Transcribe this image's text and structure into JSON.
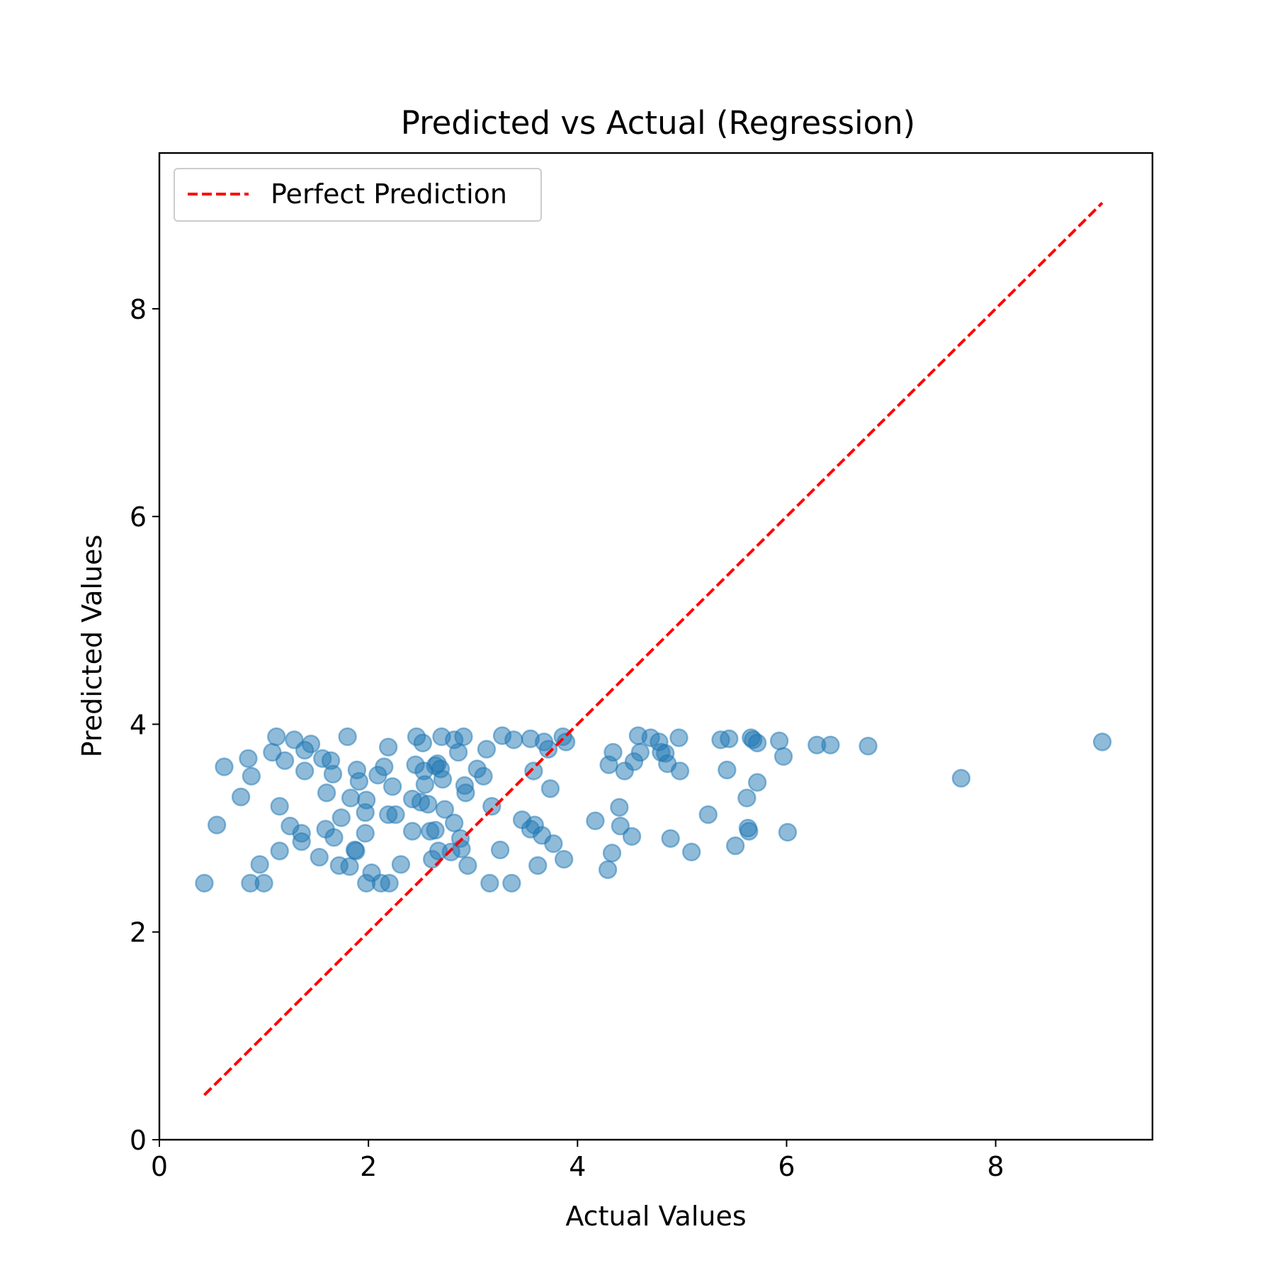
{
  "chart_data": {
    "type": "scatter",
    "title": "Predicted vs Actual (Regression)",
    "xlabel": "Actual Values",
    "ylabel": "Predicted Values",
    "xlim": [
      0,
      9.5
    ],
    "ylim": [
      0,
      9.5
    ],
    "xticks": [
      "0",
      "2",
      "4",
      "6",
      "8"
    ],
    "yticks": [
      "0",
      "2",
      "4",
      "6",
      "8"
    ],
    "grid": false,
    "legend": {
      "position": "upper-left",
      "entries": [
        "Perfect Prediction"
      ]
    },
    "reference_line": {
      "name": "Perfect Prediction",
      "style": "dashed",
      "color": "#ff0000",
      "from": [
        0.43,
        0.43
      ],
      "to": [
        9.02,
        9.02
      ]
    },
    "series": [
      {
        "marker_color": "#1f77b4",
        "points": [
          [
            0.43,
            2.47
          ],
          [
            0.55,
            3.03
          ],
          [
            0.62,
            3.59
          ],
          [
            0.78,
            3.3
          ],
          [
            0.85,
            3.67
          ],
          [
            0.87,
            2.47
          ],
          [
            0.88,
            3.5
          ],
          [
            0.96,
            2.65
          ],
          [
            1.0,
            2.47
          ],
          [
            1.08,
            3.73
          ],
          [
            1.12,
            3.88
          ],
          [
            1.15,
            2.78
          ],
          [
            1.15,
            3.21
          ],
          [
            1.2,
            3.65
          ],
          [
            1.25,
            3.02
          ],
          [
            1.29,
            3.85
          ],
          [
            1.36,
            2.95
          ],
          [
            1.36,
            2.87
          ],
          [
            1.39,
            3.75
          ],
          [
            1.39,
            3.55
          ],
          [
            1.45,
            3.81
          ],
          [
            1.53,
            2.72
          ],
          [
            1.56,
            3.67
          ],
          [
            1.59,
            2.99
          ],
          [
            1.6,
            3.34
          ],
          [
            1.64,
            3.65
          ],
          [
            1.66,
            3.52
          ],
          [
            1.67,
            2.91
          ],
          [
            1.72,
            2.64
          ],
          [
            1.74,
            3.1
          ],
          [
            1.8,
            3.88
          ],
          [
            1.82,
            2.63
          ],
          [
            1.83,
            3.29
          ],
          [
            1.87,
            2.79
          ],
          [
            1.88,
            2.78
          ],
          [
            1.89,
            3.56
          ],
          [
            1.91,
            3.45
          ],
          [
            1.97,
            2.95
          ],
          [
            1.97,
            3.15
          ],
          [
            1.98,
            3.27
          ],
          [
            1.98,
            2.47
          ],
          [
            2.03,
            2.57
          ],
          [
            2.09,
            3.51
          ],
          [
            2.12,
            2.47
          ],
          [
            2.15,
            3.59
          ],
          [
            2.19,
            3.13
          ],
          [
            2.19,
            3.78
          ],
          [
            2.2,
            2.47
          ],
          [
            2.23,
            3.4
          ],
          [
            2.26,
            3.13
          ],
          [
            2.31,
            2.65
          ],
          [
            2.42,
            3.28
          ],
          [
            2.42,
            2.97
          ],
          [
            2.45,
            3.61
          ],
          [
            2.46,
            3.88
          ],
          [
            2.5,
            3.25
          ],
          [
            2.52,
            3.82
          ],
          [
            2.53,
            3.55
          ],
          [
            2.54,
            3.42
          ],
          [
            2.57,
            3.23
          ],
          [
            2.59,
            2.97
          ],
          [
            2.61,
            2.7
          ],
          [
            2.64,
            2.98
          ],
          [
            2.64,
            3.6
          ],
          [
            2.66,
            3.62
          ],
          [
            2.67,
            2.78
          ],
          [
            2.69,
            3.57
          ],
          [
            2.7,
            3.88
          ],
          [
            2.71,
            3.47
          ],
          [
            2.73,
            3.18
          ],
          [
            2.79,
            2.77
          ],
          [
            2.82,
            3.85
          ],
          [
            2.82,
            3.05
          ],
          [
            2.86,
            3.73
          ],
          [
            2.88,
            2.9
          ],
          [
            2.89,
            2.8
          ],
          [
            2.91,
            3.88
          ],
          [
            2.92,
            3.41
          ],
          [
            2.93,
            3.34
          ],
          [
            2.95,
            2.64
          ],
          [
            3.04,
            3.57
          ],
          [
            3.1,
            3.5
          ],
          [
            3.13,
            3.76
          ],
          [
            3.16,
            2.47
          ],
          [
            3.18,
            3.21
          ],
          [
            3.26,
            2.79
          ],
          [
            3.28,
            3.89
          ],
          [
            3.37,
            2.47
          ],
          [
            3.39,
            3.85
          ],
          [
            3.47,
            3.08
          ],
          [
            3.55,
            2.99
          ],
          [
            3.55,
            3.86
          ],
          [
            3.58,
            3.55
          ],
          [
            3.59,
            3.03
          ],
          [
            3.62,
            2.64
          ],
          [
            3.66,
            2.93
          ],
          [
            3.68,
            3.83
          ],
          [
            3.72,
            3.76
          ],
          [
            3.74,
            3.38
          ],
          [
            3.77,
            2.85
          ],
          [
            3.86,
            3.88
          ],
          [
            3.87,
            2.7
          ],
          [
            3.89,
            3.83
          ],
          [
            4.17,
            3.07
          ],
          [
            4.29,
            2.6
          ],
          [
            4.3,
            3.61
          ],
          [
            4.33,
            2.76
          ],
          [
            4.34,
            3.73
          ],
          [
            4.4,
            3.2
          ],
          [
            4.41,
            3.02
          ],
          [
            4.45,
            3.55
          ],
          [
            4.52,
            2.92
          ],
          [
            4.54,
            3.64
          ],
          [
            4.58,
            3.89
          ],
          [
            4.6,
            3.73
          ],
          [
            4.7,
            3.87
          ],
          [
            4.78,
            3.83
          ],
          [
            4.8,
            3.73
          ],
          [
            4.84,
            3.72
          ],
          [
            4.86,
            3.62
          ],
          [
            4.89,
            2.9
          ],
          [
            4.97,
            3.87
          ],
          [
            4.98,
            3.55
          ],
          [
            5.09,
            2.77
          ],
          [
            5.25,
            3.13
          ],
          [
            5.37,
            3.85
          ],
          [
            5.43,
            3.56
          ],
          [
            5.45,
            3.86
          ],
          [
            5.51,
            2.83
          ],
          [
            5.62,
            3.29
          ],
          [
            5.63,
            3.0
          ],
          [
            5.64,
            2.97
          ],
          [
            5.66,
            3.87
          ],
          [
            5.68,
            3.85
          ],
          [
            5.72,
            3.44
          ],
          [
            5.72,
            3.82
          ],
          [
            5.93,
            3.84
          ],
          [
            5.97,
            3.69
          ],
          [
            6.01,
            2.96
          ],
          [
            6.29,
            3.8
          ],
          [
            6.42,
            3.8
          ],
          [
            6.78,
            3.79
          ],
          [
            7.67,
            3.48
          ],
          [
            9.02,
            3.83
          ]
        ]
      }
    ]
  }
}
